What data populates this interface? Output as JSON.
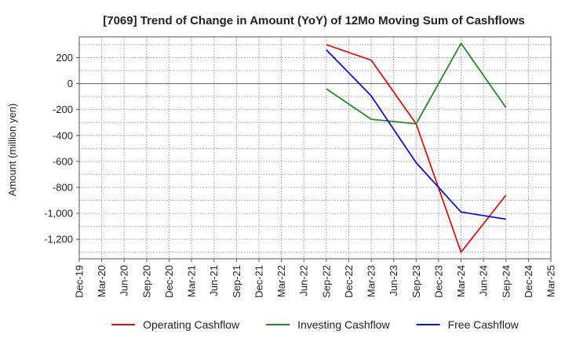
{
  "chart_data": {
    "type": "line",
    "title": "[7069]  Trend of Change in Amount (YoY) of 12Mo Moving Sum of Cashflows",
    "xlabel": "",
    "ylabel": "Amount (million yen)",
    "ylim": [
      -1350,
      360
    ],
    "y_ticks": [
      200,
      0,
      -200,
      -400,
      -600,
      -800,
      -1000,
      -1200
    ],
    "y_tick_labels": [
      "200",
      "0",
      "-200",
      "-400",
      "-600",
      "-800",
      "-1,000",
      "-1,200"
    ],
    "categories": [
      "Dec-19",
      "Mar-20",
      "Jun-20",
      "Sep-20",
      "Dec-20",
      "Mar-21",
      "Jun-21",
      "Sep-21",
      "Dec-21",
      "Mar-22",
      "Jun-22",
      "Sep-22",
      "Dec-22",
      "Mar-23",
      "Jun-23",
      "Sep-23",
      "Dec-23",
      "Mar-24",
      "Jun-24",
      "Sep-24",
      "Dec-24",
      "Mar-25"
    ],
    "grid": true,
    "legend_position": "bottom",
    "series": [
      {
        "name": "Operating Cashflow",
        "color": "#dd1111",
        "values": [
          null,
          null,
          null,
          null,
          null,
          null,
          null,
          null,
          null,
          null,
          null,
          300,
          null,
          180,
          null,
          -310,
          null,
          -1300,
          null,
          -860,
          null,
          null
        ]
      },
      {
        "name": "Investing Cashflow",
        "color": "#228822",
        "values": [
          null,
          null,
          null,
          null,
          null,
          null,
          null,
          null,
          null,
          null,
          null,
          -40,
          null,
          -275,
          null,
          -310,
          null,
          310,
          null,
          -185,
          null,
          null
        ]
      },
      {
        "name": "Free Cashflow",
        "color": "#1111cc",
        "values": [
          null,
          null,
          null,
          null,
          null,
          null,
          null,
          null,
          null,
          null,
          null,
          260,
          null,
          -95,
          null,
          -610,
          null,
          -990,
          null,
          -1045,
          null,
          null
        ]
      }
    ]
  }
}
